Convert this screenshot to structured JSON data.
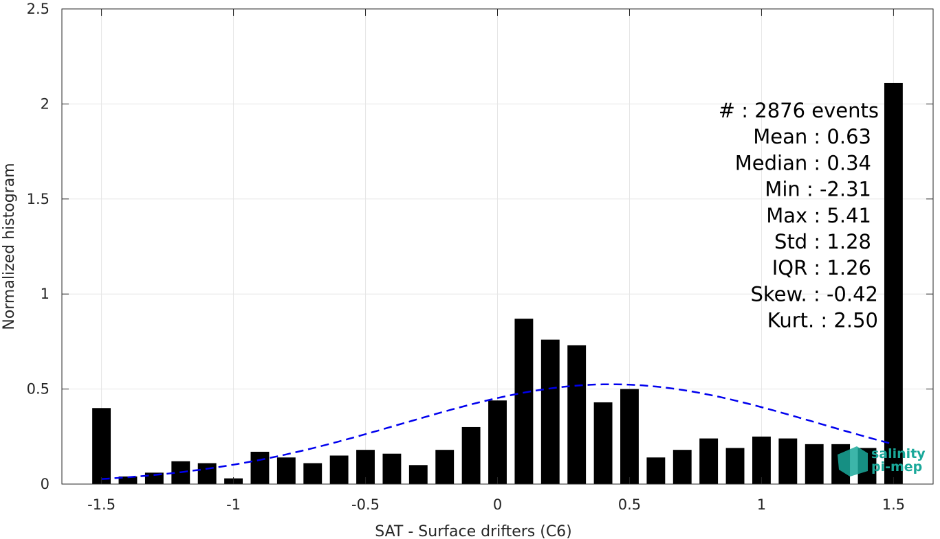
{
  "chart_data": {
    "type": "bar",
    "xlabel": "SAT - Surface drifters (C6)",
    "ylabel": "Normalized histogram",
    "xlim": [
      -1.65,
      1.65
    ],
    "ylim": [
      0,
      2.5
    ],
    "xticks": [
      -1.5,
      -1,
      -0.5,
      0,
      0.5,
      1,
      1.5
    ],
    "xtick_labels": [
      "-1.5",
      "-1",
      "-0.5",
      "0",
      "0.5",
      "1",
      "1.5"
    ],
    "yticks": [
      0,
      0.5,
      1,
      1.5,
      2,
      2.5
    ],
    "ytick_labels": [
      "0",
      "0.5",
      "1",
      "1.5",
      "2",
      "2.5"
    ],
    "grid": true,
    "bar_color": "#000000",
    "bars": {
      "x": [
        -1.5,
        -1.4,
        -1.3,
        -1.2,
        -1.1,
        -1.0,
        -0.9,
        -0.8,
        -0.7,
        -0.6,
        -0.5,
        -0.4,
        -0.3,
        -0.2,
        -0.1,
        0.0,
        0.1,
        0.2,
        0.3,
        0.4,
        0.5,
        0.6,
        0.7,
        0.8,
        0.9,
        1.0,
        1.1,
        1.2,
        1.3,
        1.4,
        1.5
      ],
      "values": [
        0.4,
        0.04,
        0.06,
        0.12,
        0.11,
        0.03,
        0.17,
        0.14,
        0.11,
        0.15,
        0.18,
        0.16,
        0.1,
        0.18,
        0.3,
        0.44,
        0.87,
        0.76,
        0.73,
        0.43,
        0.5,
        0.14,
        0.18,
        0.24,
        0.19,
        0.25,
        0.24,
        0.21,
        0.21,
        0.19,
        2.11
      ]
    },
    "fit_curve": {
      "style": "dashed",
      "color": "#0000ee",
      "mean": 0.43,
      "sigma": 0.79,
      "peak": 0.525,
      "x_range": [
        -1.5,
        1.5
      ]
    },
    "stats_lines": [
      "#  : 2876 events",
      "Mean : 0.63",
      "Median : 0.34",
      "Min : -2.31",
      "Max : 5.41",
      "Std : 1.28",
      "IQR : 1.26",
      "Skew. : -0.42",
      "Kurt. : 2.50"
    ]
  },
  "logo": {
    "line1": "salinity",
    "line2": "pi-mep",
    "color": "#1aa89a"
  }
}
